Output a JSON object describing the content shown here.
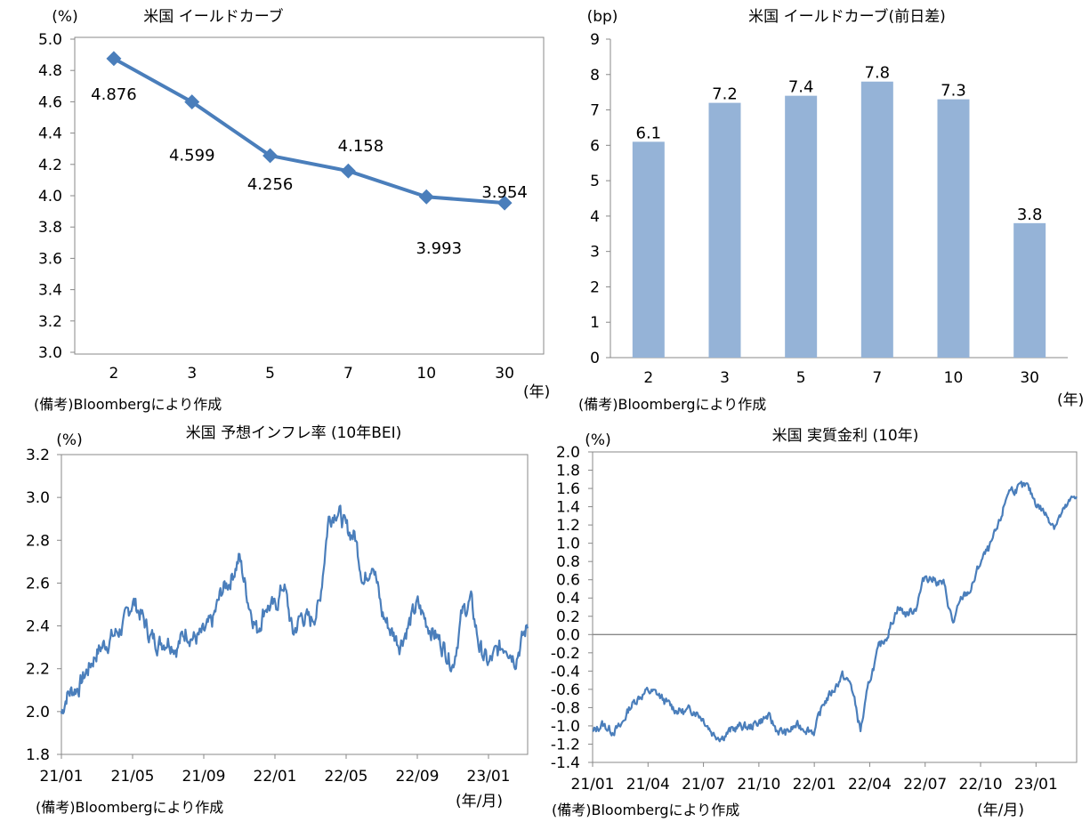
{
  "chart_data": [
    {
      "type": "line",
      "title": "米国 イールドカーブ",
      "ylabel": "(%)",
      "xlabel": "(年)",
      "note": "(備考)Bloombergにより作成",
      "categories": [
        "2",
        "3",
        "5",
        "7",
        "10",
        "30"
      ],
      "values": [
        4.876,
        4.599,
        4.256,
        4.158,
        3.993,
        3.954
      ],
      "value_labels": [
        "4.876",
        "4.599",
        "4.256",
        "4.158",
        "3.993",
        "3.954"
      ],
      "ylim": [
        3.0,
        5.0
      ],
      "yticks": [
        "3.0",
        "3.2",
        "3.4",
        "3.6",
        "3.8",
        "4.0",
        "4.2",
        "4.4",
        "4.6",
        "4.8",
        "5.0"
      ],
      "color": "#4a7ebb"
    },
    {
      "type": "bar",
      "title": "米国 イールドカーブ(前日差)",
      "ylabel": "(bp)",
      "xlabel": "(年)",
      "note": "(備考)Bloombergにより作成",
      "categories": [
        "2",
        "3",
        "5",
        "7",
        "10",
        "30"
      ],
      "values": [
        6.1,
        7.2,
        7.4,
        7.8,
        7.3,
        3.8
      ],
      "value_labels": [
        "6.1",
        "7.2",
        "7.4",
        "7.8",
        "7.3",
        "3.8"
      ],
      "ylim": [
        0,
        9
      ],
      "yticks": [
        "0",
        "1",
        "2",
        "3",
        "4",
        "5",
        "6",
        "7",
        "8",
        "9"
      ],
      "color": "#95b3d7"
    },
    {
      "type": "line",
      "title": "米国 予想インフレ率 (10年BEI)",
      "ylabel": "(%)",
      "xlabel": "(年/月)",
      "note": "(備考)Bloombergにより作成",
      "ylim": [
        1.8,
        3.2
      ],
      "yticks": [
        "1.8",
        "2.0",
        "2.2",
        "2.4",
        "2.6",
        "2.8",
        "3.0",
        "3.2"
      ],
      "xticks": [
        "21/01",
        "21/05",
        "21/09",
        "22/01",
        "22/05",
        "22/09",
        "23/01"
      ],
      "x_range_months": [
        0,
        26.2
      ],
      "anchors": [
        [
          0,
          1.99
        ],
        [
          0.3,
          2.08
        ],
        [
          1.0,
          2.12
        ],
        [
          1.5,
          2.2
        ],
        [
          2.0,
          2.28
        ],
        [
          2.5,
          2.32
        ],
        [
          3.0,
          2.36
        ],
        [
          3.5,
          2.4
        ],
        [
          4.0,
          2.52
        ],
        [
          4.5,
          2.45
        ],
        [
          5.0,
          2.35
        ],
        [
          5.5,
          2.32
        ],
        [
          6.0,
          2.34
        ],
        [
          6.5,
          2.3
        ],
        [
          7.0,
          2.38
        ],
        [
          7.5,
          2.34
        ],
        [
          8.0,
          2.36
        ],
        [
          8.5,
          2.42
        ],
        [
          9.0,
          2.56
        ],
        [
          9.5,
          2.62
        ],
        [
          10.0,
          2.72
        ],
        [
          10.5,
          2.52
        ],
        [
          11.0,
          2.38
        ],
        [
          11.5,
          2.5
        ],
        [
          12.0,
          2.48
        ],
        [
          12.5,
          2.6
        ],
        [
          13.0,
          2.36
        ],
        [
          13.5,
          2.45
        ],
        [
          14.0,
          2.42
        ],
        [
          14.5,
          2.5
        ],
        [
          15.0,
          2.9
        ],
        [
          15.5,
          2.95
        ],
        [
          16.0,
          2.85
        ],
        [
          16.5,
          2.82
        ],
        [
          17.0,
          2.6
        ],
        [
          17.5,
          2.72
        ],
        [
          18.0,
          2.46
        ],
        [
          18.5,
          2.38
        ],
        [
          19.0,
          2.32
        ],
        [
          19.5,
          2.4
        ],
        [
          20.0,
          2.5
        ],
        [
          20.5,
          2.42
        ],
        [
          21.0,
          2.36
        ],
        [
          21.5,
          2.3
        ],
        [
          22.0,
          2.22
        ],
        [
          22.5,
          2.45
        ],
        [
          23.0,
          2.52
        ],
        [
          23.5,
          2.3
        ],
        [
          24.0,
          2.22
        ],
        [
          24.5,
          2.28
        ],
        [
          25.0,
          2.32
        ],
        [
          25.5,
          2.25
        ],
        [
          26.2,
          2.4
        ]
      ],
      "color": "#4a7ebb"
    },
    {
      "type": "line",
      "title": "米国 実質金利 (10年)",
      "ylabel": "(%)",
      "xlabel": "(年/月)",
      "note": "(備考)Bloombergにより作成",
      "ylim": [
        -1.4,
        2.0
      ],
      "yticks": [
        "-1.4",
        "-1.2",
        "-1.0",
        "-0.8",
        "-0.6",
        "-0.4",
        "-0.2",
        "0.0",
        "0.2",
        "0.4",
        "0.6",
        "0.8",
        "1.0",
        "1.2",
        "1.4",
        "1.6",
        "1.8",
        "2.0"
      ],
      "xticks": [
        "21/01",
        "21/04",
        "21/07",
        "21/10",
        "22/01",
        "22/04",
        "22/07",
        "22/10",
        "23/01"
      ],
      "x_range_months": [
        0,
        26.2
      ],
      "anchors": [
        [
          0,
          -1.08
        ],
        [
          0.5,
          -0.98
        ],
        [
          1.0,
          -1.05
        ],
        [
          1.5,
          -1.02
        ],
        [
          2.0,
          -0.8
        ],
        [
          2.5,
          -0.68
        ],
        [
          3.0,
          -0.62
        ],
        [
          3.5,
          -0.65
        ],
        [
          4.0,
          -0.75
        ],
        [
          4.5,
          -0.82
        ],
        [
          5.0,
          -0.85
        ],
        [
          5.5,
          -0.82
        ],
        [
          6.0,
          -0.92
        ],
        [
          6.5,
          -1.08
        ],
        [
          7.0,
          -1.12
        ],
        [
          7.5,
          -1.05
        ],
        [
          8.0,
          -1.0
        ],
        [
          8.5,
          -1.02
        ],
        [
          9.0,
          -0.95
        ],
        [
          9.5,
          -0.9
        ],
        [
          10.0,
          -1.05
        ],
        [
          10.5,
          -1.08
        ],
        [
          11.0,
          -1.0
        ],
        [
          11.5,
          -1.02
        ],
        [
          12.0,
          -1.06
        ],
        [
          12.5,
          -0.75
        ],
        [
          13.0,
          -0.62
        ],
        [
          13.5,
          -0.45
        ],
        [
          14.0,
          -0.55
        ],
        [
          14.5,
          -1.05
        ],
        [
          15.0,
          -0.5
        ],
        [
          15.5,
          -0.15
        ],
        [
          16.0,
          0.02
        ],
        [
          16.5,
          0.3
        ],
        [
          17.0,
          0.22
        ],
        [
          17.5,
          0.3
        ],
        [
          18.0,
          0.65
        ],
        [
          18.5,
          0.6
        ],
        [
          19.0,
          0.55
        ],
        [
          19.5,
          0.12
        ],
        [
          20.0,
          0.4
        ],
        [
          20.5,
          0.5
        ],
        [
          21.0,
          0.8
        ],
        [
          21.5,
          0.95
        ],
        [
          22.0,
          1.2
        ],
        [
          22.5,
          1.58
        ],
        [
          23.0,
          1.6
        ],
        [
          23.5,
          1.62
        ],
        [
          24.0,
          1.45
        ],
        [
          24.5,
          1.32
        ],
        [
          25.0,
          1.2
        ],
        [
          25.5,
          1.35
        ],
        [
          26.2,
          1.55
        ]
      ],
      "color": "#4a7ebb"
    }
  ]
}
